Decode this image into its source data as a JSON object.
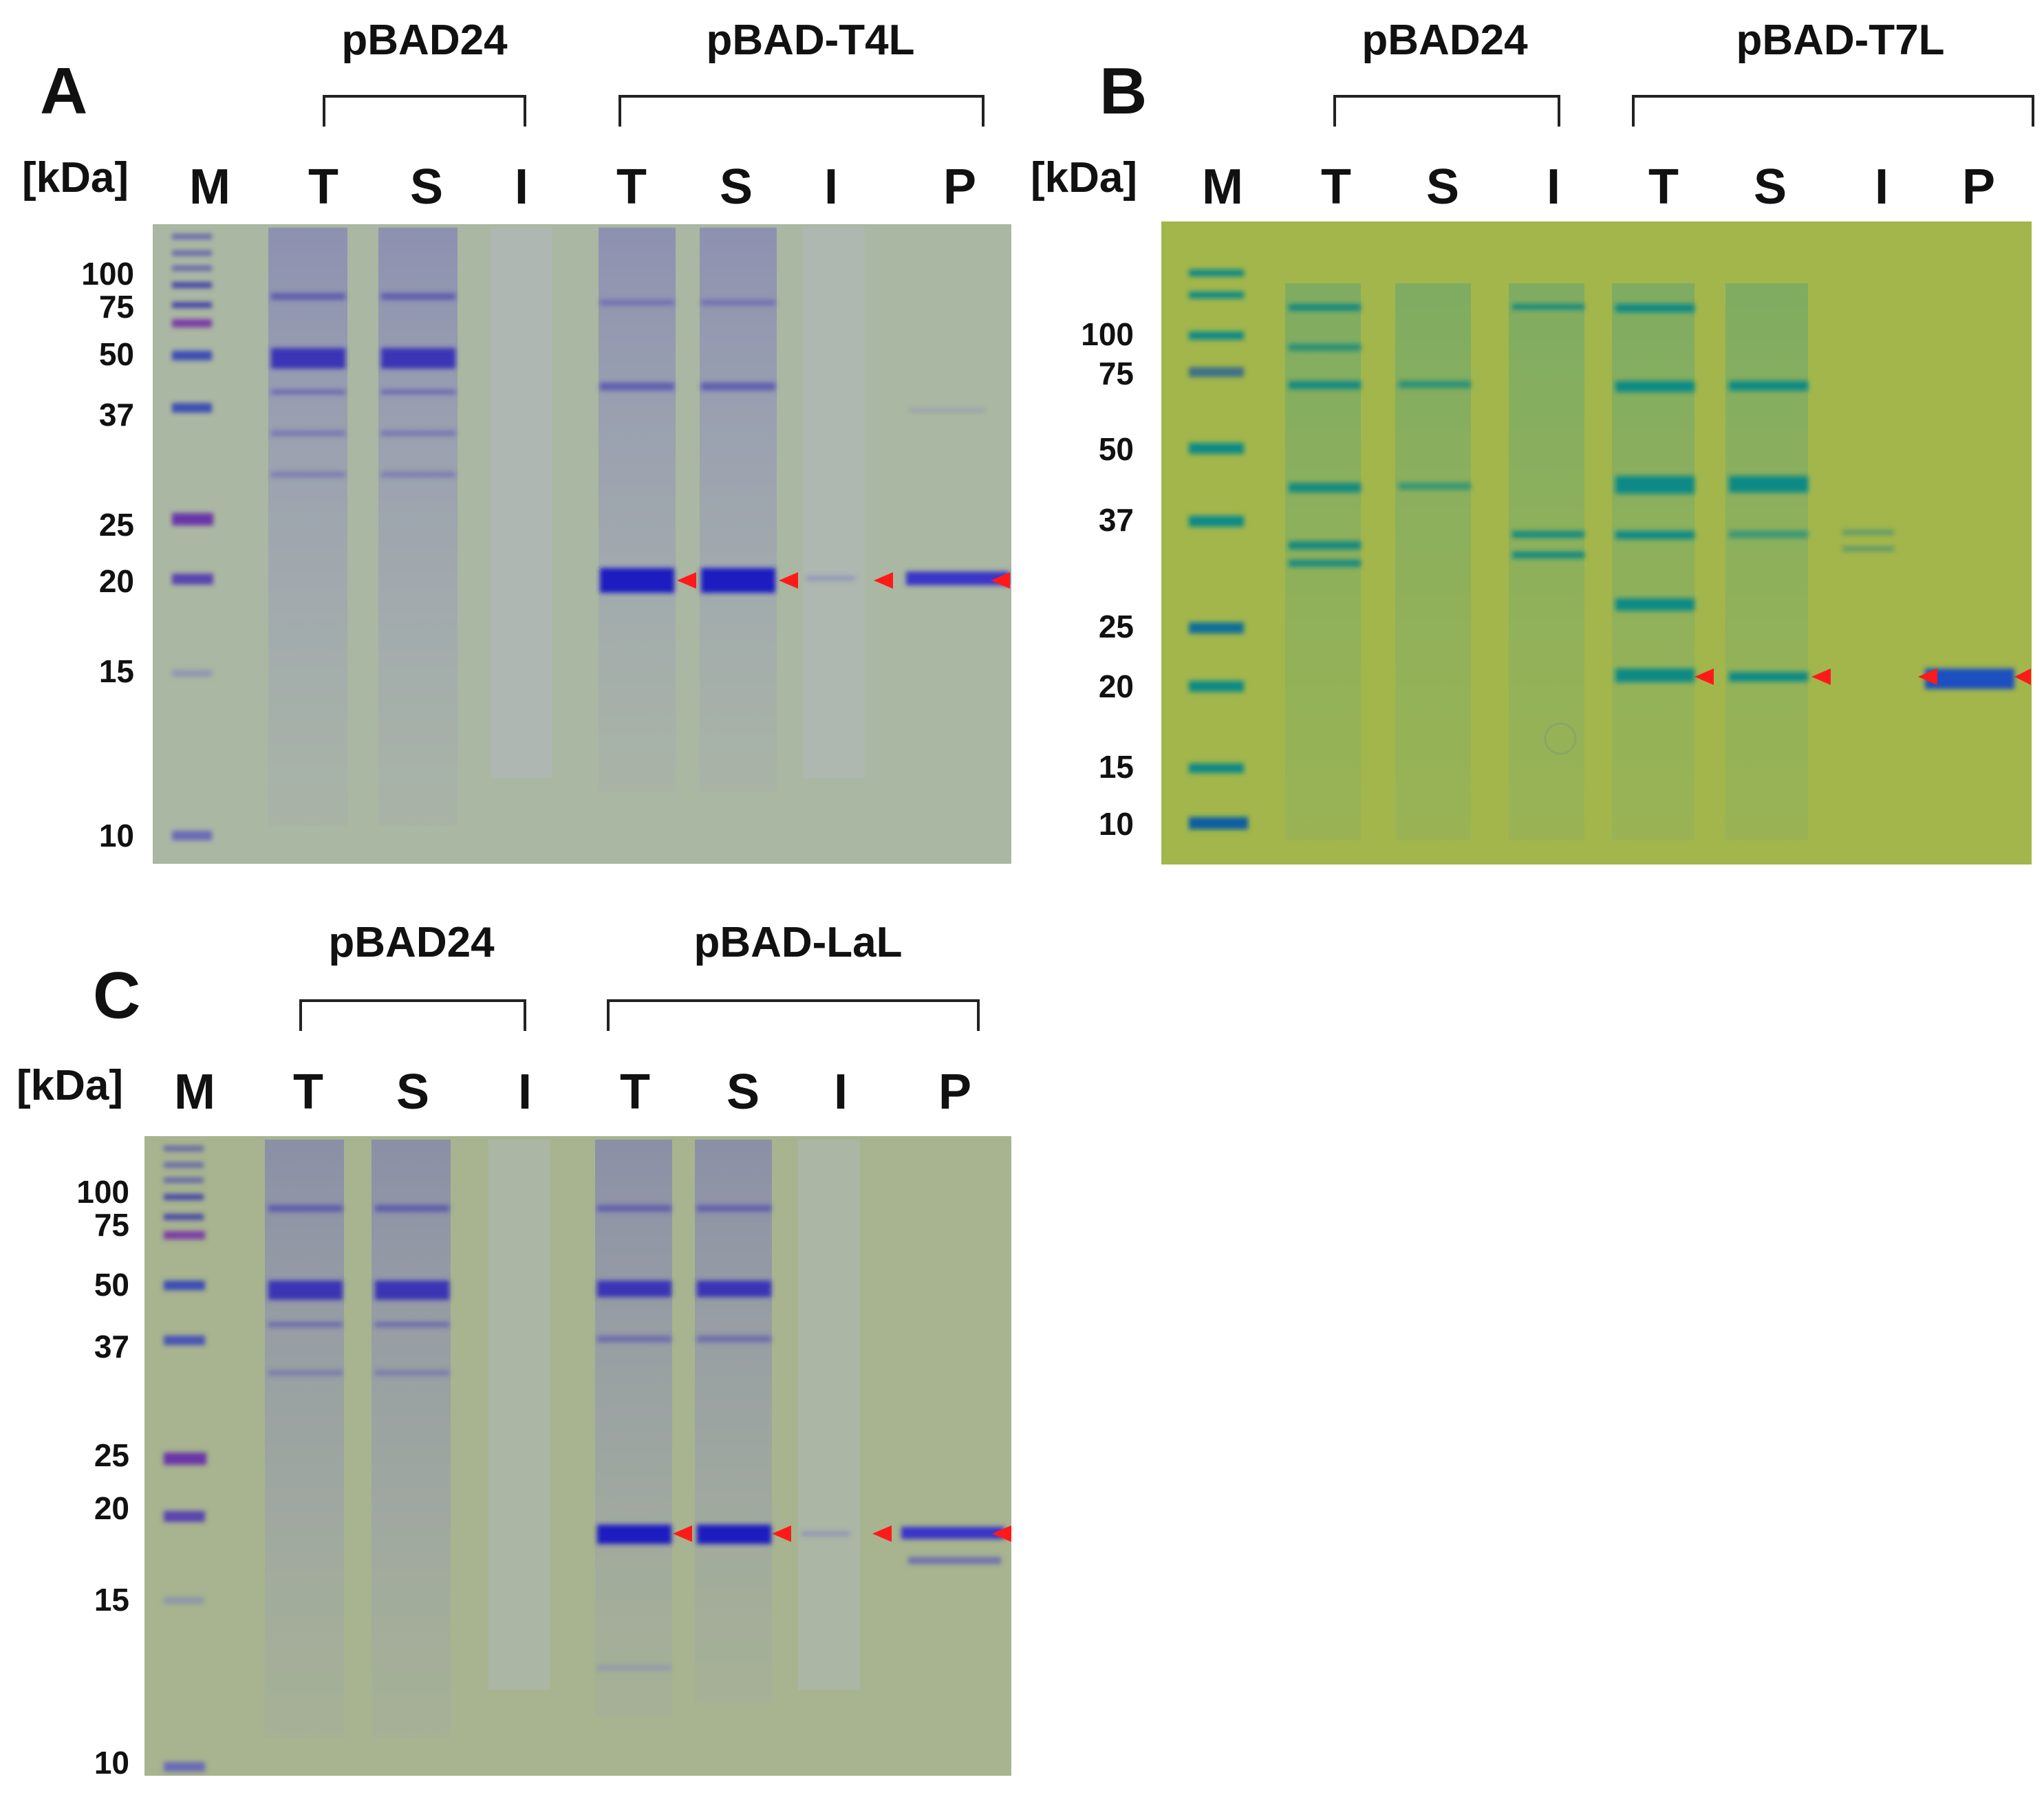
{
  "panels": [
    {
      "id": "A",
      "label": "A",
      "kda_label": "[kDa]",
      "groups": [
        {
          "name": "pBAD24"
        },
        {
          "name": "pBAD-T4L"
        }
      ],
      "lanes": [
        "M",
        "T",
        "S",
        "I",
        "T",
        "S",
        "I",
        "P"
      ],
      "markers": [
        "100",
        "75",
        "50",
        "37",
        "25",
        "20",
        "15",
        "10"
      ],
      "gel_color": "#a9b5a0",
      "stain_color": "#3a2fb8"
    },
    {
      "id": "B",
      "label": "B",
      "kda_label": "[kDa]",
      "groups": [
        {
          "name": "pBAD24"
        },
        {
          "name": "pBAD-T7L"
        }
      ],
      "lanes": [
        "M",
        "T",
        "S",
        "I",
        "T",
        "S",
        "I",
        "P"
      ],
      "markers": [
        "100",
        "75",
        "50",
        "37",
        "25",
        "20",
        "15",
        "10"
      ],
      "gel_color": "#9fb54a",
      "stain_color": "#0f8f8a"
    },
    {
      "id": "C",
      "label": "C",
      "kda_label": "[kDa]",
      "groups": [
        {
          "name": "pBAD24"
        },
        {
          "name": "pBAD-LaL"
        }
      ],
      "lanes": [
        "M",
        "T",
        "S",
        "I",
        "T",
        "S",
        "I",
        "P"
      ],
      "markers": [
        "100",
        "75",
        "50",
        "37",
        "25",
        "20",
        "15",
        "10"
      ],
      "gel_color": "#a6b38e",
      "stain_color": "#3a2fb8"
    }
  ],
  "arrow_color": "#ff1a1a"
}
